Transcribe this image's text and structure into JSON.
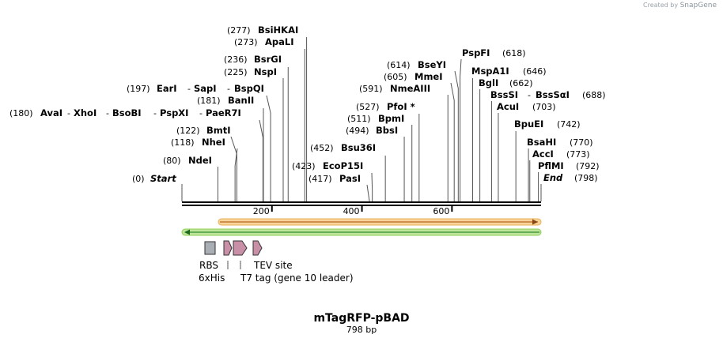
{
  "watermark": {
    "prefix": "Created by",
    "brand": "SnapGene"
  },
  "plasmid": {
    "name": "mTagRFP-pBAD",
    "size": 798,
    "size_label": "798 bp"
  },
  "axis_ticks": [
    {
      "bp": 200,
      "label": "200"
    },
    {
      "bp": 400,
      "label": "400"
    },
    {
      "bp": 600,
      "label": "600"
    }
  ],
  "sites": [
    {
      "id": "start",
      "labels": [
        {
          "pos": "(0)",
          "name": "Start",
          "italic": true
        }
      ]
    },
    {
      "id": "ndei",
      "labels": [
        {
          "pos": "(80)",
          "name": "NdeI"
        }
      ]
    },
    {
      "id": "nhei",
      "labels": [
        {
          "pos": "(118)",
          "name": "NheI"
        }
      ]
    },
    {
      "id": "bmti",
      "labels": [
        {
          "pos": "(122)",
          "name": "BmtI"
        }
      ]
    },
    {
      "id": "avai",
      "labels": [
        {
          "pos": "(180)",
          "name": "AvaI"
        },
        {
          "name": "XhoI"
        },
        {
          "name": "BsoBI"
        },
        {
          "name": "PspXI"
        },
        {
          "name": "PaeR7I"
        }
      ]
    },
    {
      "id": "banii",
      "labels": [
        {
          "pos": "(181)",
          "name": "BanII"
        }
      ]
    },
    {
      "id": "eari",
      "labels": [
        {
          "pos": "(197)",
          "name": "EarI"
        },
        {
          "name": "SapI"
        },
        {
          "name": "BspQI"
        }
      ]
    },
    {
      "id": "nspi",
      "labels": [
        {
          "pos": "(225)",
          "name": "NspI"
        }
      ]
    },
    {
      "id": "bsrgi",
      "labels": [
        {
          "pos": "(236)",
          "name": "BsrGI"
        }
      ]
    },
    {
      "id": "apali",
      "labels": [
        {
          "pos": "(273)",
          "name": "ApaLI"
        }
      ]
    },
    {
      "id": "bsihkai",
      "labels": [
        {
          "pos": "(277)",
          "name": "BsiHKAI"
        }
      ]
    },
    {
      "id": "pasi",
      "labels": [
        {
          "pos": "(417)",
          "name": "PasI"
        }
      ]
    },
    {
      "id": "ecop15i",
      "labels": [
        {
          "pos": "(423)",
          "name": "EcoP15I"
        }
      ]
    },
    {
      "id": "bsu36i",
      "labels": [
        {
          "pos": "(452)",
          "name": "Bsu36I"
        }
      ]
    },
    {
      "id": "bbsi",
      "labels": [
        {
          "pos": "(494)",
          "name": "BbsI"
        }
      ]
    },
    {
      "id": "bpmi",
      "labels": [
        {
          "pos": "(511)",
          "name": "BpmI"
        }
      ]
    },
    {
      "id": "pfoi",
      "labels": [
        {
          "pos": "(527)",
          "name": "PfoI *"
        }
      ]
    },
    {
      "id": "nmeaiii",
      "labels": [
        {
          "pos": "(591)",
          "name": "NmeAIII"
        }
      ]
    },
    {
      "id": "mmei",
      "labels": [
        {
          "pos": "(605)",
          "name": "MmeI"
        }
      ]
    },
    {
      "id": "bseyi",
      "labels": [
        {
          "pos": "(614)",
          "name": "BseYI"
        }
      ]
    },
    {
      "id": "pspfi",
      "labels": [
        {
          "pos": "(618)",
          "name": "PspFI"
        }
      ]
    },
    {
      "id": "mspa1i",
      "labels": [
        {
          "pos": "(646)",
          "name": "MspA1I"
        }
      ]
    },
    {
      "id": "bgli",
      "labels": [
        {
          "pos": "(662)",
          "name": "BglI"
        }
      ]
    },
    {
      "id": "bsssi",
      "labels": [
        {
          "name": "BssSI"
        },
        {
          "name": "BssSαI"
        },
        {
          "pos": "(688)"
        }
      ]
    },
    {
      "id": "acui",
      "labels": [
        {
          "pos": "(703)",
          "name": "AcuI"
        }
      ]
    },
    {
      "id": "bpuei",
      "labels": [
        {
          "pos": "(742)",
          "name": "BpuEI"
        }
      ]
    },
    {
      "id": "bsahi",
      "labels": [
        {
          "pos": "(770)",
          "name": "BsaHI"
        }
      ]
    },
    {
      "id": "acci",
      "labels": [
        {
          "pos": "(773)",
          "name": "AccI"
        }
      ]
    },
    {
      "id": "pflmi",
      "labels": [
        {
          "pos": "(792)",
          "name": "PflMI"
        }
      ]
    },
    {
      "id": "end",
      "labels": [
        {
          "pos": "(798)",
          "name": "End",
          "italic": true
        }
      ]
    }
  ],
  "features": [
    {
      "id": "rbs",
      "label": "RBS",
      "color": "#a9adb4"
    },
    {
      "id": "his",
      "label": "6xHis",
      "color": "#c98fa7"
    },
    {
      "id": "t7",
      "label": "T7 tag (gene 10 leader)",
      "color": "#c98fa7"
    },
    {
      "id": "tev",
      "label": "TEV site",
      "color": "#c98fa7"
    }
  ],
  "arrows": [
    {
      "id": "forward-orf",
      "direction": "forward",
      "color": "#f5c06a",
      "line": "#b5651d"
    },
    {
      "id": "reverse-orf",
      "direction": "reverse",
      "color": "#a8d86e",
      "line": "#2e8b2e"
    }
  ],
  "colors": {
    "backbone": "#000000",
    "leader": "#555555",
    "feature_border": "#333333"
  }
}
